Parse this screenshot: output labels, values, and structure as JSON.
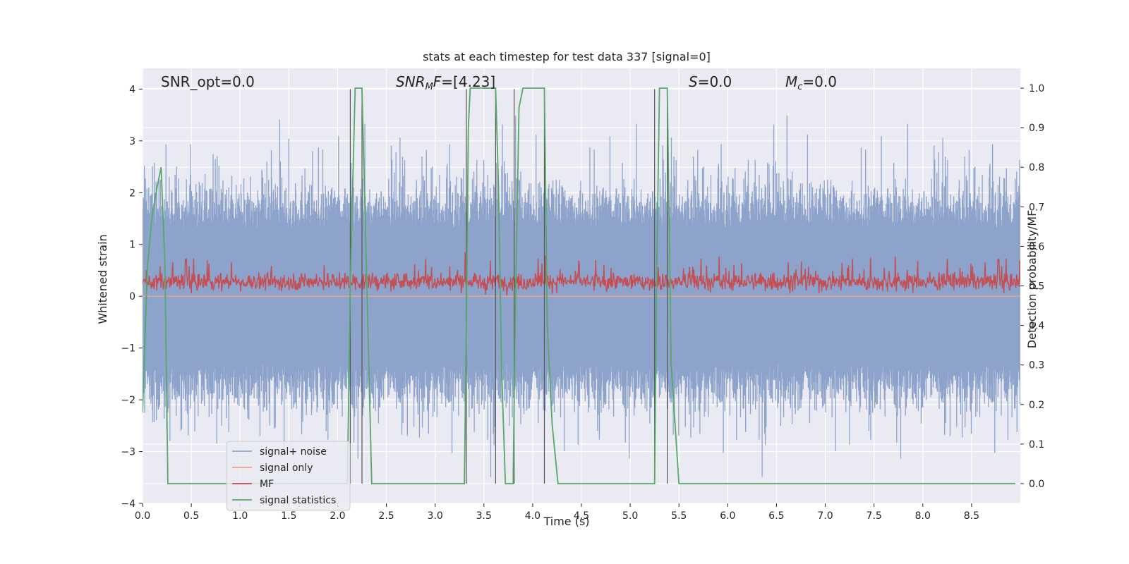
{
  "chart_data": {
    "type": "line",
    "title": "stats at each timestep for test data 337 [signal=0]",
    "xlabel": "Time (s)",
    "ylabel": "Whitened strain",
    "ylabel_right": "Detection probability/MF",
    "xlim": [
      0,
      9.0
    ],
    "ylim": [
      -4,
      4.4
    ],
    "ylim_right": [
      -0.05,
      1.05
    ],
    "x_ticks": [
      "0.0",
      "0.5",
      "1.0",
      "1.5",
      "2.0",
      "2.5",
      "3.0",
      "3.5",
      "4.0",
      "4.5",
      "5.0",
      "5.5",
      "6.0",
      "6.5",
      "7.0",
      "7.5",
      "8.0",
      "8.5"
    ],
    "y_ticks": [
      "4",
      "3",
      "2",
      "1",
      "0",
      "−1",
      "−2",
      "−3",
      "−4"
    ],
    "y_ticks_right": [
      "1.0",
      "0.9",
      "0.8",
      "0.7",
      "0.6",
      "0.5",
      "0.4",
      "0.3",
      "0.2",
      "0.1",
      "0.0"
    ],
    "grid": true,
    "legend_placement": "lower-left",
    "annotations": {
      "snr_opt": "SNR_opt=0.0",
      "snr_mf_sym": "SNR",
      "snr_mf_sub": "M",
      "snr_mf_rest": "F=[4.23]",
      "s_sym": "S",
      "s_rest": "=0.0",
      "mc_sym": "M",
      "mc_sub": "c",
      "mc_rest": "=0.0"
    },
    "series": [
      {
        "name": "signal+ noise",
        "color": "#8ea3cb",
        "description": "noise, approximately between -3.6 and 4.0, sampled densely over 0-9 s"
      },
      {
        "name": "signal only",
        "color": "#e8a68a",
        "values_constant": 0.0
      },
      {
        "name": "MF",
        "color": "#c44e52",
        "range": [
          0.0,
          1.0
        ]
      },
      {
        "name": "signal statistics",
        "color": "#55a868",
        "x": [
          0.0,
          0.05,
          0.1,
          0.15,
          0.19,
          0.23,
          0.26,
          0.5,
          1.0,
          1.5,
          2.0,
          2.1,
          2.13,
          2.18,
          2.22,
          2.25,
          2.3,
          2.35,
          2.5,
          3.0,
          3.3,
          3.32,
          3.34,
          3.36,
          3.38,
          3.6,
          3.62,
          3.65,
          3.68,
          3.72,
          3.77,
          3.8,
          3.82,
          3.86,
          3.9,
          4.0,
          4.1,
          4.12,
          4.15,
          4.2,
          4.26,
          4.5,
          5.0,
          5.25,
          5.27,
          5.3,
          5.35,
          5.38,
          5.42,
          5.5,
          6.0,
          7.0,
          8.0,
          8.95
        ],
        "y": [
          0.18,
          0.55,
          0.68,
          0.75,
          0.8,
          0.55,
          0.0,
          0.0,
          0.0,
          0.0,
          0.0,
          0.0,
          0.5,
          1.0,
          1.0,
          1.0,
          0.5,
          0.0,
          0.0,
          0.0,
          0.0,
          0.4,
          0.9,
          1.0,
          1.0,
          1.0,
          1.0,
          0.75,
          0.3,
          0.0,
          0.0,
          0.0,
          0.4,
          0.95,
          1.0,
          1.0,
          1.0,
          1.0,
          0.4,
          0.15,
          0.0,
          0.0,
          0.0,
          0.0,
          0.5,
          1.0,
          1.0,
          1.0,
          0.3,
          0.0,
          0.0,
          0.0,
          0.0,
          0.0
        ]
      }
    ],
    "vlines_x": [
      2.13,
      2.25,
      3.32,
      3.62,
      3.81,
      4.12,
      5.25,
      5.38
    ],
    "vline_color": "#555555"
  }
}
